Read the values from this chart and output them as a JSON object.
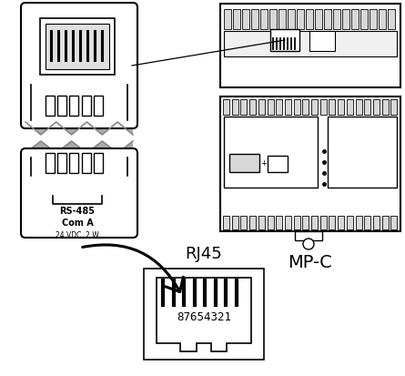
{
  "bg_color": "#ffffff",
  "line_color": "#000000",
  "line_color_gray": "#888888",
  "mp_c_label": "MP-C",
  "rj45_label": "RJ45",
  "rs485_label1": "RS-485",
  "rs485_label2": "Com A",
  "rs485_label3": "24 VDC, 2 W",
  "pin_label": "87654321"
}
